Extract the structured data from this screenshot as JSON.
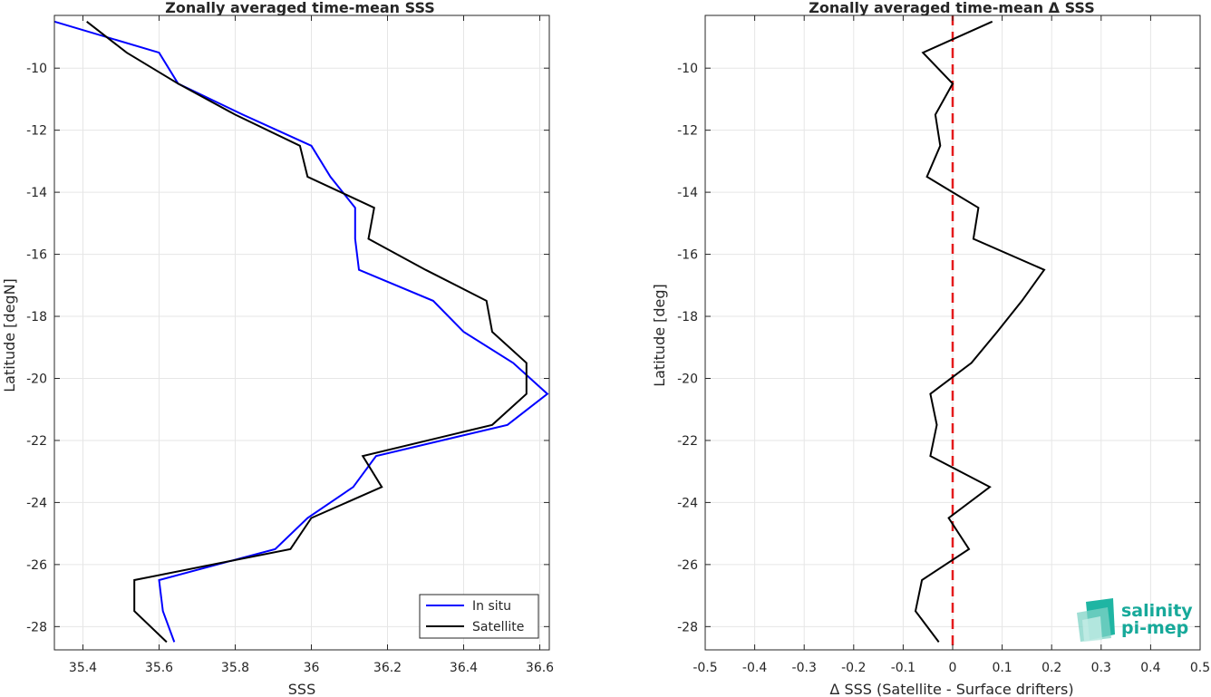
{
  "chart_data": [
    {
      "type": "line",
      "title": "Zonally averaged time-mean SSS",
      "xlabel": "SSS",
      "ylabel": "Latitude [degN]",
      "xlim": [
        35.325,
        36.625
      ],
      "ylim": [
        -28.75,
        -8.3
      ],
      "xticks": [
        35.4,
        35.6,
        35.8,
        36.0,
        36.2,
        36.4,
        36.6
      ],
      "xtick_labels": [
        "35.4",
        "35.6",
        "35.8",
        "36",
        "36.2",
        "36.4",
        "36.6"
      ],
      "yticks": [
        -10,
        -12,
        -14,
        -16,
        -18,
        -20,
        -22,
        -24,
        -26,
        -28
      ],
      "ytick_labels": [
        "-10",
        "-12",
        "-14",
        "-16",
        "-18",
        "-20",
        "-22",
        "-24",
        "-26",
        "-28"
      ],
      "grid": true,
      "legend": {
        "placement": "bottom-right",
        "entries": [
          "In situ",
          "Satellite"
        ]
      },
      "series": [
        {
          "name": "In situ",
          "color": "#0000ff",
          "points": [
            [
              35.325,
              -8.5
            ],
            [
              35.6,
              -9.5
            ],
            [
              35.65,
              -10.5
            ],
            [
              35.82,
              -11.5
            ],
            [
              36.0,
              -12.5
            ],
            [
              36.05,
              -13.5
            ],
            [
              36.115,
              -14.5
            ],
            [
              36.115,
              -15.5
            ],
            [
              36.125,
              -16.5
            ],
            [
              36.32,
              -17.5
            ],
            [
              36.4,
              -18.5
            ],
            [
              36.53,
              -19.5
            ],
            [
              36.62,
              -20.5
            ],
            [
              36.515,
              -21.5
            ],
            [
              36.17,
              -22.5
            ],
            [
              36.11,
              -23.5
            ],
            [
              35.99,
              -24.5
            ],
            [
              35.905,
              -25.5
            ],
            [
              35.6,
              -26.5
            ],
            [
              35.61,
              -27.5
            ],
            [
              35.64,
              -28.5
            ]
          ]
        },
        {
          "name": "Satellite",
          "color": "#000000",
          "points": [
            [
              35.41,
              -8.5
            ],
            [
              35.515,
              -9.5
            ],
            [
              35.65,
              -10.5
            ],
            [
              35.8,
              -11.5
            ],
            [
              35.97,
              -12.5
            ],
            [
              35.99,
              -13.5
            ],
            [
              36.165,
              -14.5
            ],
            [
              36.15,
              -15.5
            ],
            [
              36.3,
              -16.5
            ],
            [
              36.46,
              -17.5
            ],
            [
              36.475,
              -18.5
            ],
            [
              36.565,
              -19.5
            ],
            [
              36.565,
              -20.5
            ],
            [
              36.475,
              -21.5
            ],
            [
              36.135,
              -22.5
            ],
            [
              36.185,
              -23.5
            ],
            [
              36.0,
              -24.5
            ],
            [
              35.945,
              -25.5
            ],
            [
              35.535,
              -26.5
            ],
            [
              35.535,
              -27.5
            ],
            [
              35.62,
              -28.5
            ]
          ]
        }
      ]
    },
    {
      "type": "line",
      "title": "Zonally averaged time-mean Δ SSS",
      "xlabel": "Δ SSS (Satellite - Surface drifters)",
      "ylabel": "Latitude [deg]",
      "xlim": [
        -0.5,
        0.5
      ],
      "ylim": [
        -28.75,
        -8.3
      ],
      "xticks": [
        -0.5,
        -0.4,
        -0.3,
        -0.2,
        -0.1,
        0,
        0.1,
        0.2,
        0.3,
        0.4,
        0.5
      ],
      "xtick_labels": [
        "-0.5",
        "-0.4",
        "-0.3",
        "-0.2",
        "-0.1",
        "0",
        "0.1",
        "0.2",
        "0.3",
        "0.4",
        "0.5"
      ],
      "yticks": [
        -10,
        -12,
        -14,
        -16,
        -18,
        -20,
        -22,
        -24,
        -26,
        -28
      ],
      "ytick_labels": [
        "-10",
        "-12",
        "-14",
        "-16",
        "-18",
        "-20",
        "-22",
        "-24",
        "-26",
        "-28"
      ],
      "grid": true,
      "reference_line": {
        "x": 0,
        "color": "#e41a1c",
        "style": "dashed"
      },
      "series": [
        {
          "color": "#000000",
          "points": [
            [
              0.08,
              -8.5
            ],
            [
              -0.06,
              -9.5
            ],
            [
              0.0,
              -10.5
            ],
            [
              -0.035,
              -11.5
            ],
            [
              -0.025,
              -12.5
            ],
            [
              -0.052,
              -13.5
            ],
            [
              0.0,
              -14.0
            ],
            [
              0.052,
              -14.5
            ],
            [
              0.042,
              -15.5
            ],
            [
              0.185,
              -16.5
            ],
            [
              0.14,
              -17.5
            ],
            [
              0.09,
              -18.5
            ],
            [
              0.038,
              -19.5
            ],
            [
              -0.045,
              -20.5
            ],
            [
              -0.032,
              -21.5
            ],
            [
              -0.045,
              -22.5
            ],
            [
              0.075,
              -23.5
            ],
            [
              -0.008,
              -24.5
            ],
            [
              0.033,
              -25.5
            ],
            [
              -0.062,
              -26.5
            ],
            [
              -0.075,
              -27.5
            ],
            [
              -0.028,
              -28.5
            ]
          ]
        }
      ]
    }
  ],
  "logo": {
    "line1": "salinity",
    "line2": "pi-mep",
    "color": "#17a99a"
  }
}
